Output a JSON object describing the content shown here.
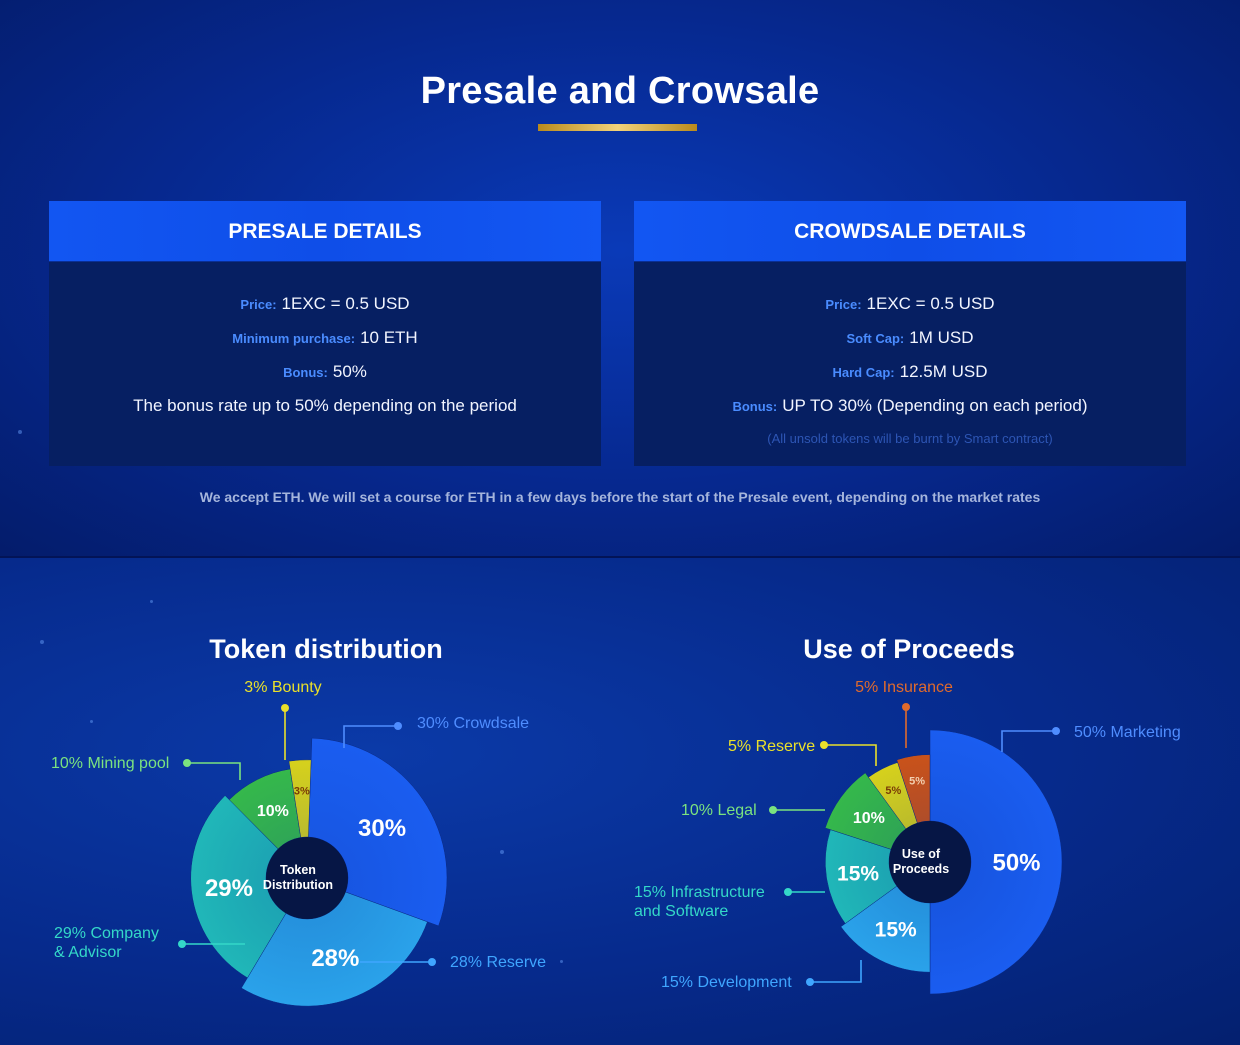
{
  "header": {
    "title": "Presale and Crowsale"
  },
  "presale": {
    "title": "PRESALE DETAILS",
    "rows": [
      {
        "label": "Price:",
        "value": "1EXC = 0.5 USD"
      },
      {
        "label": "Minimum purchase:",
        "value": "10 ETH"
      },
      {
        "label": "Bonus:",
        "value": "50%"
      }
    ],
    "text": "The bonus rate up to 50% depending on the period"
  },
  "crowdsale": {
    "title": "CROWDSALE DETAILS",
    "rows": [
      {
        "label": "Price:",
        "value": "1EXC = 0.5 USD"
      },
      {
        "label": "Soft Cap:",
        "value": "1M USD"
      },
      {
        "label": "Hard Cap:",
        "value": "12.5M USD"
      },
      {
        "label": "Bonus:",
        "value": "UP TO 30% (Depending on each period)"
      }
    ],
    "note": "(All unsold tokens will be burnt by Smart contract)"
  },
  "accept_text": "We accept ETH. We will set a course for ETH in a few days before the start of the Presale event, depending on the market rates",
  "chart_data": [
    {
      "type": "pie",
      "title": "Token distribution",
      "center_label": [
        "Token",
        "Distribution"
      ],
      "slices": [
        {
          "name": "Crowdsale",
          "value": 30,
          "pct_label": "30%",
          "legend": [
            "30% Crowdsale"
          ],
          "color": "#1a5df0",
          "label_color": "#4f8dff",
          "depth": 1.0
        },
        {
          "name": "Reserve",
          "value": 28,
          "pct_label": "28%",
          "legend": [
            "28% Reserve"
          ],
          "color": "#2aa2ea",
          "label_color": "#3fa6ff",
          "depth": 0.88
        },
        {
          "name": "Company & Advisor",
          "value": 29,
          "pct_label": "29%",
          "legend": [
            "29% Company",
            "& Advisor"
          ],
          "color": "#20b7b8",
          "label_color": "#34d8c8",
          "depth": 0.76
        },
        {
          "name": "Mining pool",
          "value": 10,
          "pct_label": "10%",
          "legend": [
            "10% Mining pool"
          ],
          "color": "#35b84b",
          "label_color": "#7be37f",
          "depth": 0.7
        },
        {
          "name": "Bounty",
          "value": 3,
          "pct_label": "3%",
          "legend": [
            "3% Bounty"
          ],
          "color": "#d6d11c",
          "label_color": "#eae02a",
          "depth": 0.78
        }
      ]
    },
    {
      "type": "pie",
      "title": "Use of Proceeds",
      "center_label": [
        "Use of",
        "Proceeds"
      ],
      "slices": [
        {
          "name": "Marketing",
          "value": 50,
          "pct_label": "50%",
          "legend": [
            "50% Marketing"
          ],
          "color": "#1a5df0",
          "label_color": "#4f8dff",
          "depth": 1.0
        },
        {
          "name": "Development",
          "value": 15,
          "pct_label": "15%",
          "legend": [
            "15% Development"
          ],
          "color": "#2aa2ea",
          "label_color": "#3fa6ff",
          "depth": 0.76
        },
        {
          "name": "Infrastructure and Software",
          "value": 15,
          "pct_label": "15%",
          "legend": [
            "15% Infrastructure",
            "and Software"
          ],
          "color": "#20b7b8",
          "label_color": "#34d8c8",
          "depth": 0.7
        },
        {
          "name": "Legal",
          "value": 10,
          "pct_label": "10%",
          "legend": [
            "10% Legal"
          ],
          "color": "#35b84b",
          "label_color": "#7be37f",
          "depth": 0.76
        },
        {
          "name": "Reserve",
          "value": 5,
          "pct_label": "5%",
          "legend": [
            "5% Reserve"
          ],
          "color": "#d6d11c",
          "label_color": "#eae02a",
          "depth": 0.7
        },
        {
          "name": "Insurance",
          "value": 5,
          "pct_label": "5%",
          "legend": [
            "5% Insurance"
          ],
          "color": "#c9521a",
          "label_color": "#e06a2c",
          "depth": 0.73
        }
      ]
    }
  ]
}
